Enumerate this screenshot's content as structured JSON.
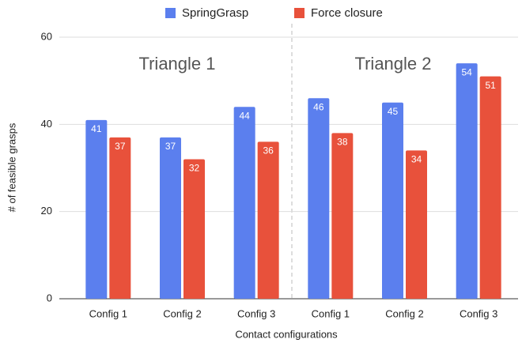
{
  "chart_data": {
    "type": "bar",
    "categories": [
      "Config 1",
      "Config 2",
      "Config 3",
      "Config 1",
      "Config 2",
      "Config 3"
    ],
    "series": [
      {
        "name": "SpringGrasp",
        "color": "#5b7fee",
        "values": [
          41,
          37,
          44,
          46,
          45,
          54
        ]
      },
      {
        "name": "Force closure",
        "color": "#e8513b",
        "values": [
          37,
          32,
          36,
          38,
          34,
          51
        ]
      }
    ],
    "annotations": [
      "Triangle 1",
      "Triangle 2"
    ],
    "xlabel": "Contact configurations",
    "ylabel": "# of feasible grasps",
    "ylim": [
      0,
      60
    ],
    "yticks": [
      0,
      20,
      40,
      60
    ],
    "grid": true,
    "legend": "top"
  }
}
